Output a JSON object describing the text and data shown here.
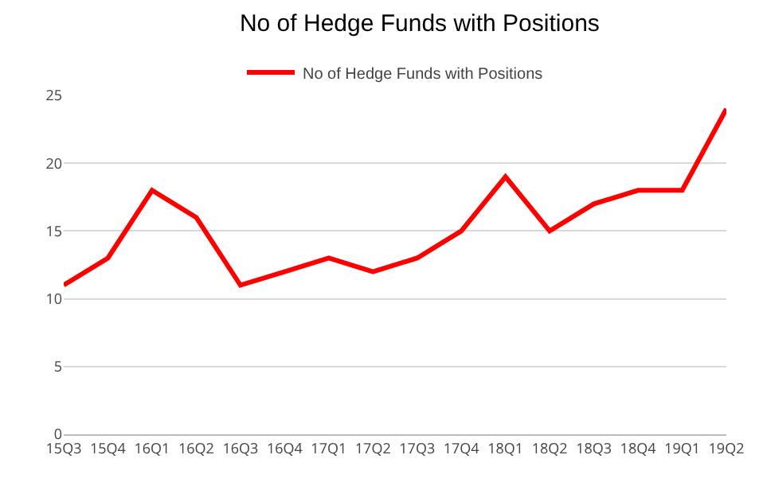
{
  "chart_data": {
    "type": "line",
    "title": "No of Hedge Funds with Positions",
    "categories": [
      "15Q3",
      "15Q4",
      "16Q1",
      "16Q2",
      "16Q3",
      "16Q4",
      "17Q1",
      "17Q2",
      "17Q3",
      "17Q4",
      "18Q1",
      "18Q2",
      "18Q3",
      "18Q4",
      "19Q1",
      "19Q2"
    ],
    "series": [
      {
        "name": "No of Hedge Funds with Positions",
        "color": "#ff0000",
        "values": [
          11,
          13,
          18,
          16,
          11,
          12,
          13,
          12,
          13,
          15,
          19,
          15,
          17,
          18,
          18,
          24
        ]
      }
    ],
    "ylim": [
      0,
      25
    ],
    "yticks": [
      0,
      5,
      10,
      15,
      20,
      25
    ],
    "grid": "y",
    "legend": "top",
    "marker": "none",
    "line_style": "solid"
  }
}
